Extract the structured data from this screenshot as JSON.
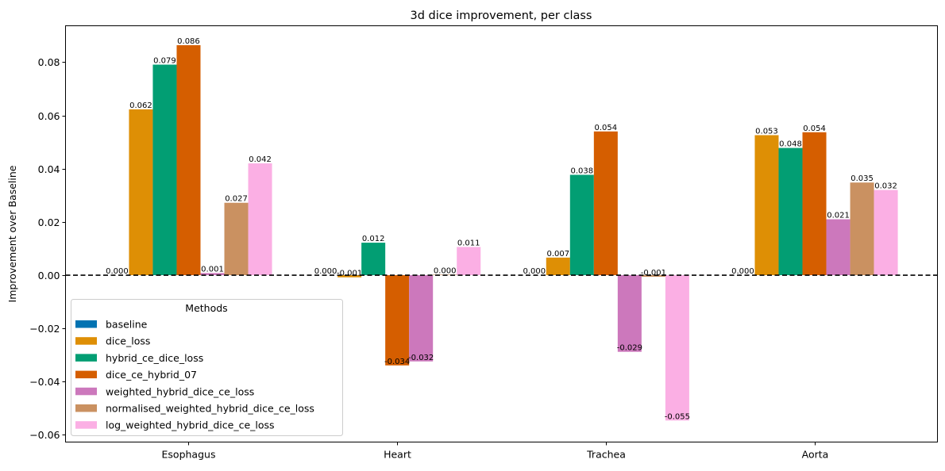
{
  "chart_data": {
    "type": "bar",
    "title": "3d dice improvement, per class",
    "xlabel": "",
    "ylabel": "Improvement over Baseline",
    "categories": [
      "Esophagus",
      "Heart",
      "Trachea",
      "Aorta"
    ],
    "ylim": [
      -0.0627,
      0.0937
    ],
    "yticks": [
      -0.06,
      -0.04,
      -0.02,
      0.0,
      0.02,
      0.04,
      0.06,
      0.08
    ],
    "ytick_labels": [
      "−0.06",
      "−0.04",
      "−0.02",
      "0.00",
      "0.02",
      "0.04",
      "0.06",
      "0.08"
    ],
    "reference_line": 0,
    "legend": {
      "title": "Methods",
      "placement": "lower-left"
    },
    "series": [
      {
        "name": "baseline",
        "color": "#0173b2",
        "values": [
          0.0,
          0.0,
          0.0,
          0.0
        ]
      },
      {
        "name": "dice_loss",
        "color": "#de8f05",
        "values": [
          0.0623,
          -0.0008,
          0.0066,
          0.0526
        ]
      },
      {
        "name": "hybrid_ce_dice_loss",
        "color": "#029e73",
        "values": [
          0.0791,
          0.0122,
          0.0377,
          0.0478
        ]
      },
      {
        "name": "dice_ce_hybrid_07",
        "color": "#d55e00",
        "values": [
          0.0864,
          -0.0339,
          0.054,
          0.0537
        ]
      },
      {
        "name": "weighted_hybrid_dice_ce_loss",
        "color": "#cc78bc",
        "values": [
          0.0008,
          -0.0324,
          -0.0288,
          0.021
        ]
      },
      {
        "name": "normalised_weighted_hybrid_dice_ce_loss",
        "color": "#ca9161",
        "values": [
          0.0272,
          0.0002,
          -0.0006,
          0.0348
        ]
      },
      {
        "name": "log_weighted_hybrid_dice_ce_loss",
        "color": "#fbafe4",
        "values": [
          0.042,
          0.0106,
          -0.0546,
          0.032
        ]
      }
    ],
    "data_labels": [
      [
        "0.000",
        "0.062",
        "0.079",
        "0.086",
        "0.001",
        "0.027",
        "0.042"
      ],
      [
        "0.000",
        "-0.001",
        "0.012",
        "-0.034",
        "-0.032",
        "0.000",
        "0.011"
      ],
      [
        "0.000",
        "0.007",
        "0.038",
        "0.054",
        "-0.029",
        "-0.001",
        "-0.055"
      ],
      [
        "0.000",
        "0.053",
        "0.048",
        "0.054",
        "0.021",
        "0.035",
        "0.032"
      ]
    ]
  }
}
